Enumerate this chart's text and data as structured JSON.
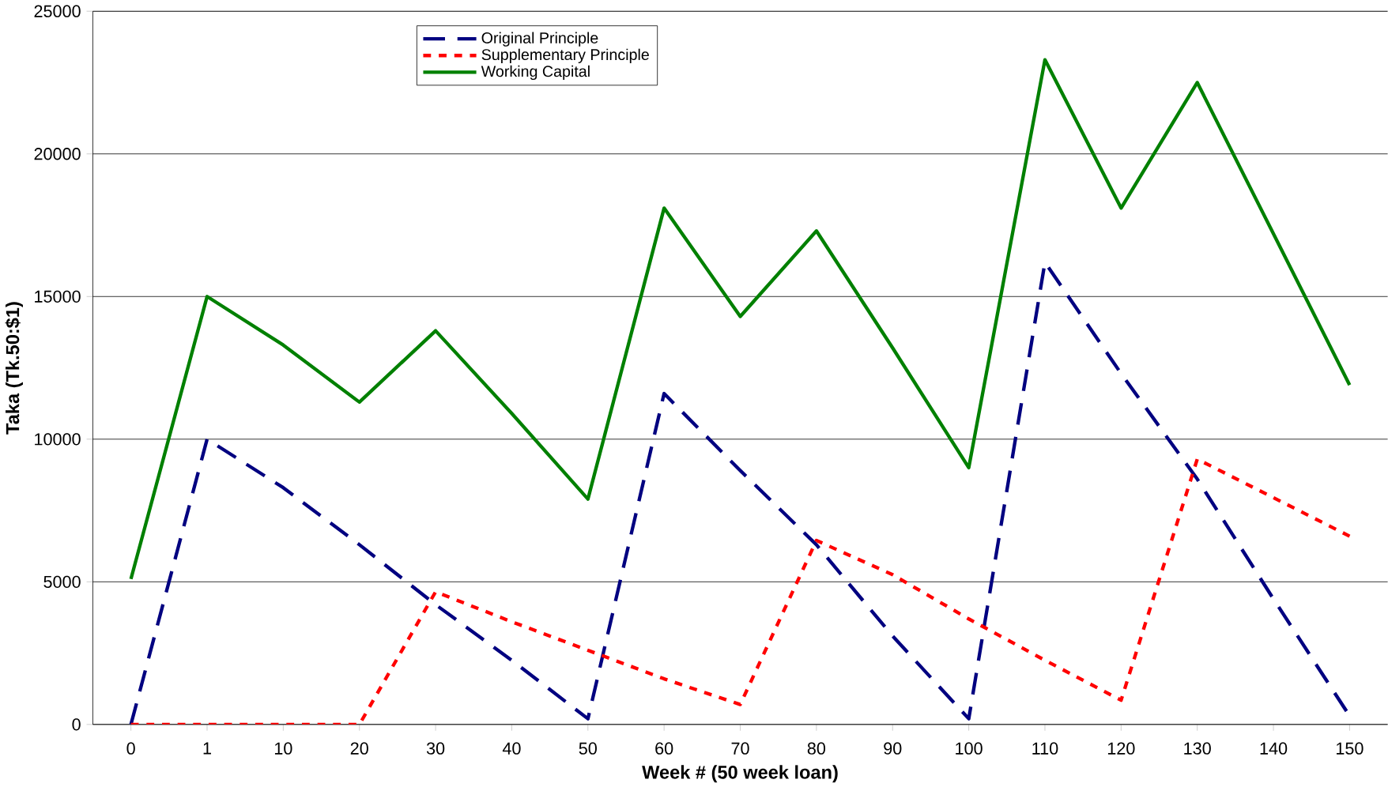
{
  "chart_data": {
    "type": "line",
    "xlabel": "Week # (50 week loan)",
    "ylabel": "Taka (Tk.50:$1)",
    "categories": [
      "0",
      "1",
      "10",
      "20",
      "30",
      "40",
      "50",
      "60",
      "70",
      "80",
      "90",
      "100",
      "110",
      "120",
      "130",
      "140",
      "150"
    ],
    "series": [
      {
        "name": "Original Principle",
        "color": "#000080",
        "line_style": "dashed",
        "values": [
          0,
          10000,
          8300,
          6300,
          4200,
          2250,
          200,
          11600,
          8900,
          6300,
          3100,
          200,
          16200,
          12300,
          8600,
          4400,
          300
        ]
      },
      {
        "name": "Supplementary Principle",
        "color": "#ff0000",
        "line_style": "dotted",
        "values": [
          0,
          0,
          0,
          0,
          4650,
          3600,
          2600,
          1600,
          700,
          6450,
          5250,
          3700,
          2250,
          850,
          9300,
          7950,
          6600
        ]
      },
      {
        "name": "Working Capital",
        "color": "#008000",
        "line_style": "solid",
        "values": [
          5100,
          15000,
          13300,
          11300,
          13800,
          10900,
          7900,
          18100,
          14300,
          17300,
          13200,
          9000,
          23300,
          18100,
          22500,
          17200,
          11900
        ]
      }
    ],
    "ylim": [
      0,
      25000
    ],
    "yticks": [
      0,
      5000,
      10000,
      15000,
      20000,
      25000
    ],
    "grid": "y",
    "legend": "top",
    "marker": "none"
  }
}
